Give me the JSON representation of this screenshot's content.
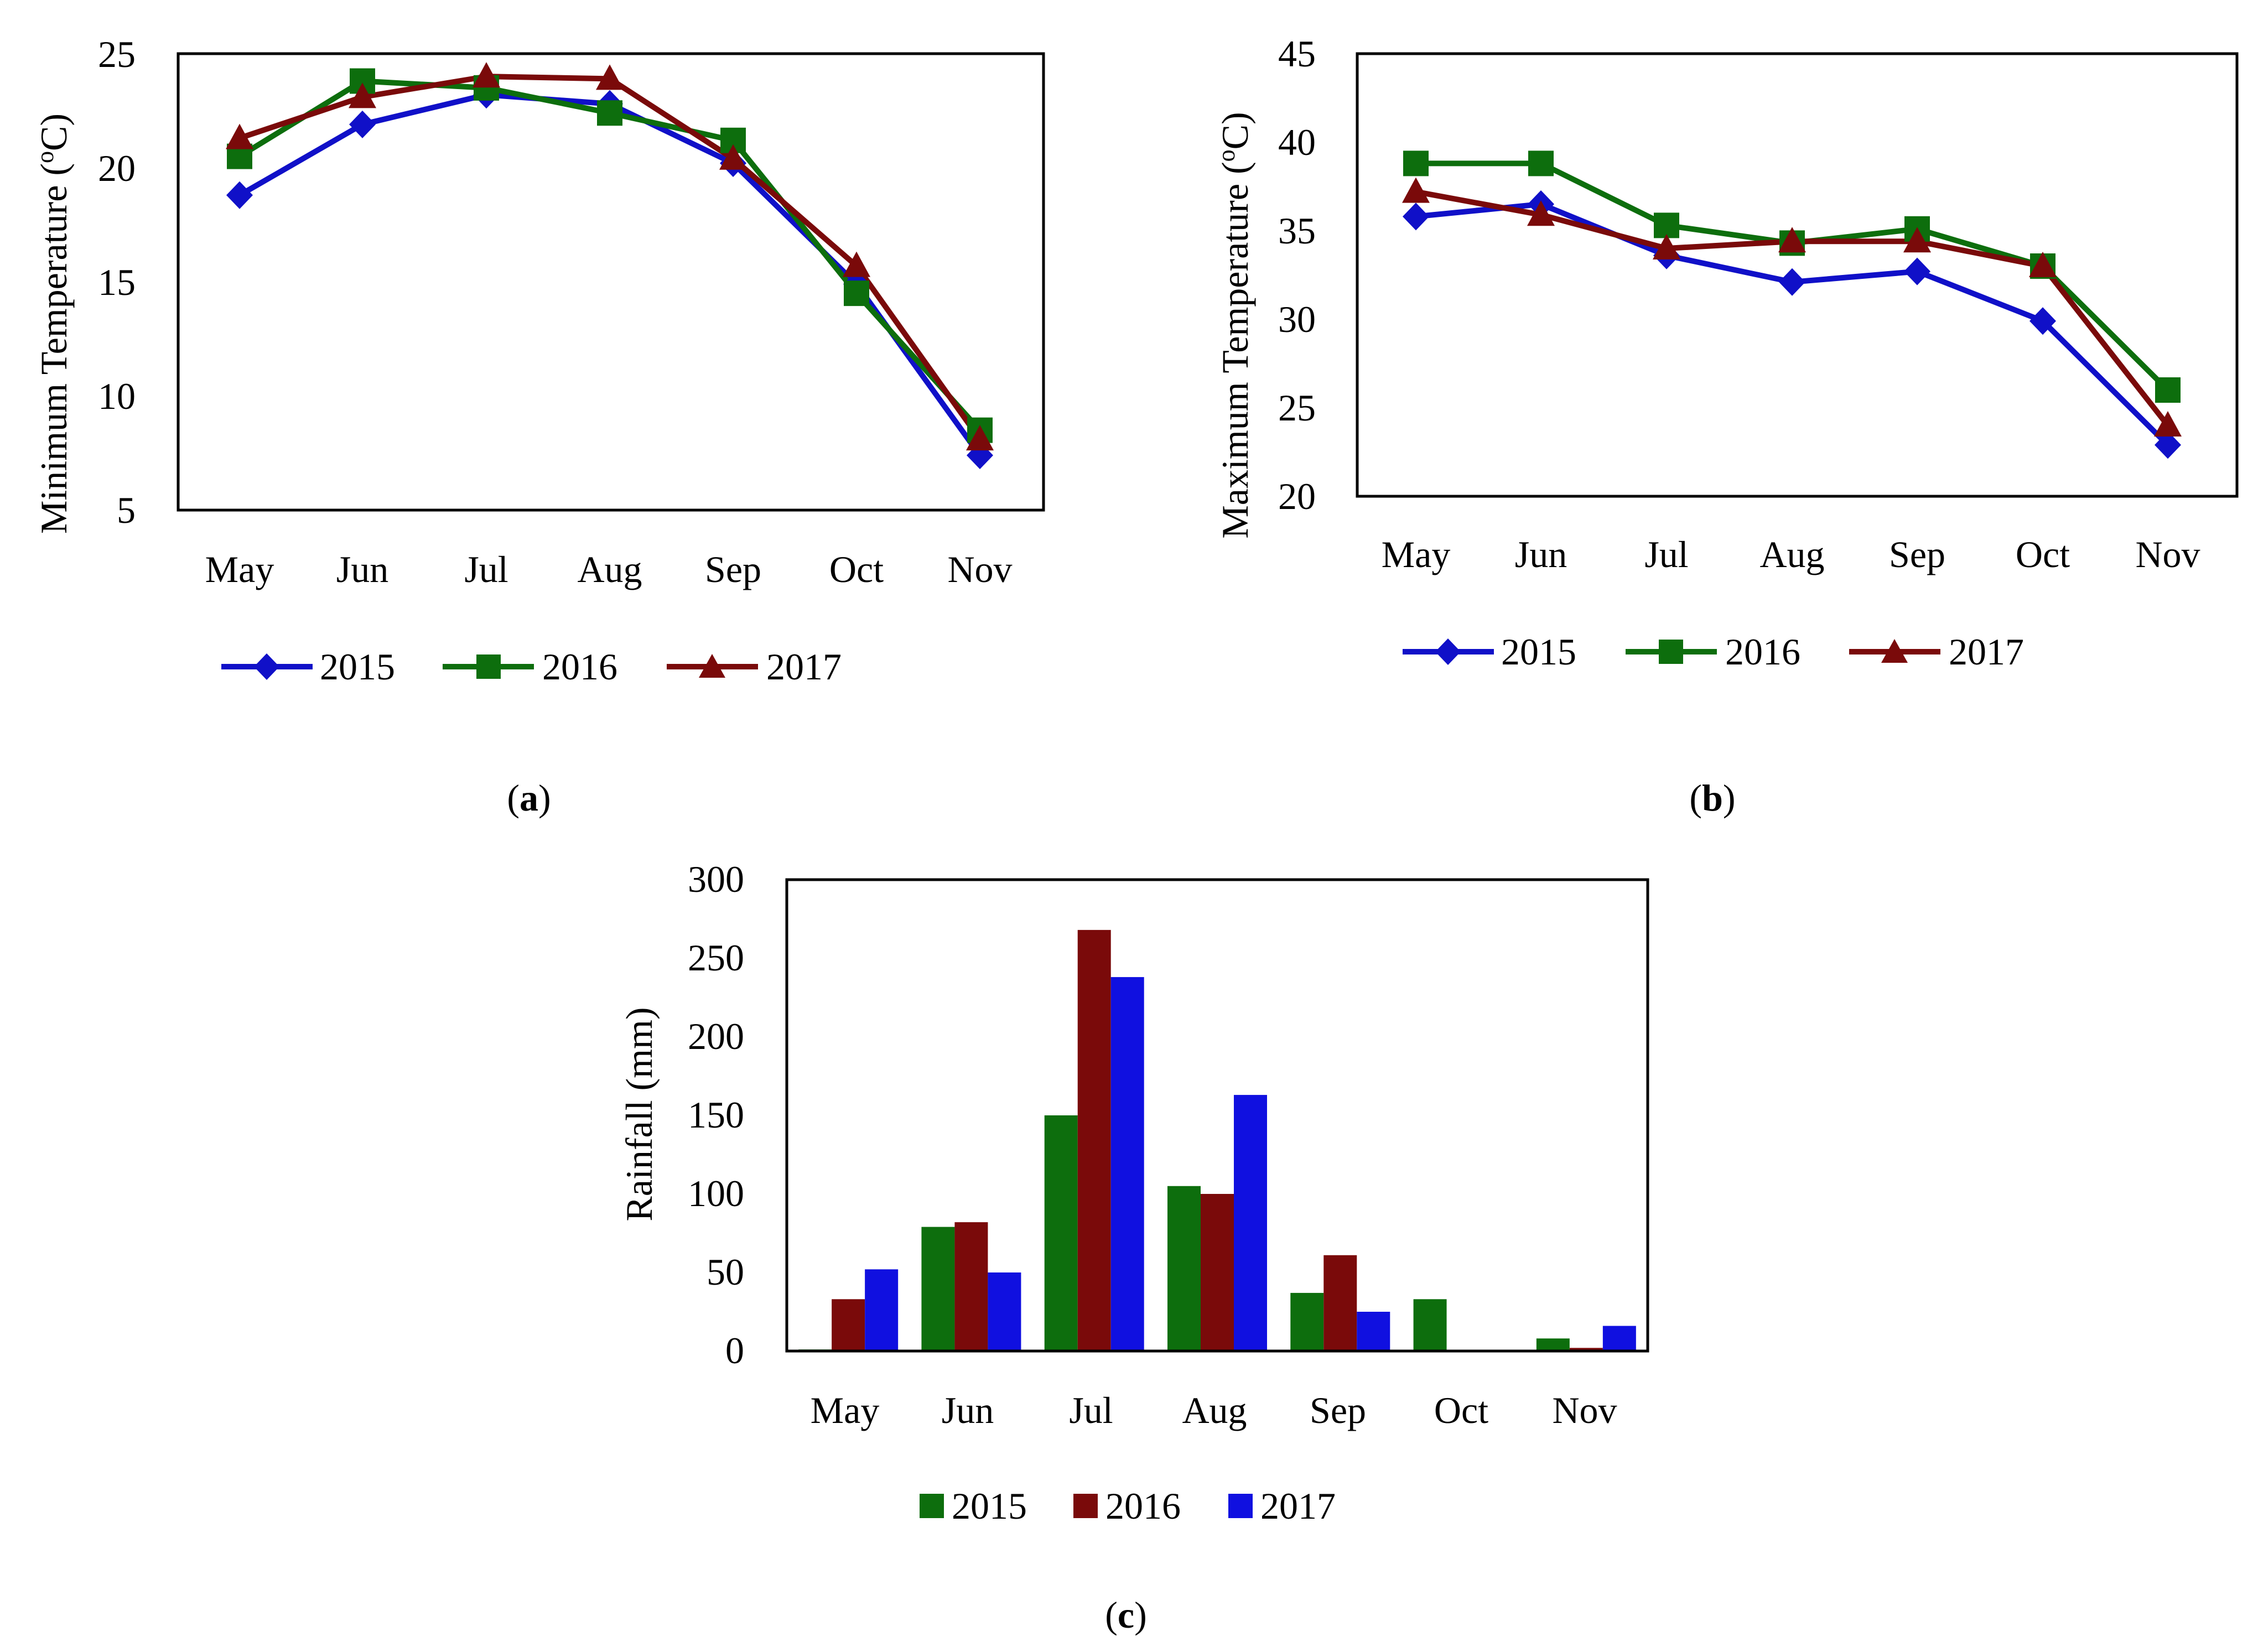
{
  "figure": {
    "panel_labels": {
      "a": {
        "open": "(",
        "letter": "a",
        "close": ")"
      },
      "b": {
        "open": "(",
        "letter": "b",
        "close": ")"
      },
      "c": {
        "open": "(",
        "letter": "c",
        "close": ")"
      }
    }
  },
  "colors": {
    "2015_line": "#1010c8",
    "2016_line": "#0d6e0d",
    "2017_line": "#7a0a0a",
    "2015_bar": "#0d6e0d",
    "2016_bar": "#7a0a0a",
    "2017_bar": "#1010e0"
  },
  "chart_data": [
    {
      "id": "a",
      "type": "line",
      "ylabel": "Minimum Temperature (oC)",
      "ylabel_parts": {
        "main": "Minimum Temperature (",
        "sup": "o",
        "tail": "C)"
      },
      "xlabel": "",
      "categories": [
        "May",
        "Jun",
        "Jul",
        "Aug",
        "Sep",
        "Oct",
        "Nov"
      ],
      "ylim": [
        5,
        25
      ],
      "yticks": [
        "5",
        "10",
        "15",
        "20",
        "25"
      ],
      "legend": "bottom",
      "series": [
        {
          "name": "2015",
          "marker": "diamond",
          "values": [
            18.8,
            21.9,
            23.2,
            22.8,
            20.2,
            14.9,
            7.4
          ]
        },
        {
          "name": "2016",
          "marker": "square",
          "values": [
            20.5,
            23.8,
            23.5,
            22.4,
            21.2,
            14.5,
            8.5
          ]
        },
        {
          "name": "2017",
          "marker": "triangle",
          "values": [
            21.3,
            23.1,
            24.0,
            23.9,
            20.4,
            15.7,
            8.1
          ]
        }
      ]
    },
    {
      "id": "b",
      "type": "line",
      "ylabel": "Maximum Temperature (oC)",
      "ylabel_parts": {
        "main": "Maximum Temperature (",
        "sup": "o",
        "tail": "C)"
      },
      "xlabel": "",
      "categories": [
        "May",
        "Jun",
        "Jul",
        "Aug",
        "Sep",
        "Oct",
        "Nov"
      ],
      "ylim": [
        20,
        45
      ],
      "yticks": [
        "20",
        "25",
        "30",
        "35",
        "40",
        "45"
      ],
      "legend": "bottom",
      "series": [
        {
          "name": "2015",
          "marker": "diamond",
          "values": [
            35.8,
            36.5,
            33.6,
            32.1,
            32.7,
            29.9,
            22.9
          ]
        },
        {
          "name": "2016",
          "marker": "square",
          "values": [
            38.8,
            38.8,
            35.3,
            34.3,
            35.1,
            33.0,
            26.0
          ]
        },
        {
          "name": "2017",
          "marker": "triangle",
          "values": [
            37.2,
            35.9,
            34.0,
            34.4,
            34.4,
            33.0,
            24.0
          ]
        }
      ]
    },
    {
      "id": "c",
      "type": "bar",
      "ylabel": "Rainfall (mm)",
      "xlabel": "",
      "categories": [
        "May",
        "Jun",
        "Jul",
        "Aug",
        "Sep",
        "Oct",
        "Nov"
      ],
      "ylim": [
        0,
        300
      ],
      "yticks": [
        "0",
        "50",
        "100",
        "150",
        "200",
        "250",
        "300"
      ],
      "legend": "bottom",
      "series": [
        {
          "name": "2015",
          "values": [
            1,
            79,
            150,
            105,
            37,
            33,
            8
          ]
        },
        {
          "name": "2016",
          "values": [
            33,
            82,
            268,
            100,
            61,
            0,
            2
          ]
        },
        {
          "name": "2017",
          "values": [
            52,
            50,
            238,
            163,
            25,
            0,
            16
          ]
        }
      ]
    }
  ]
}
